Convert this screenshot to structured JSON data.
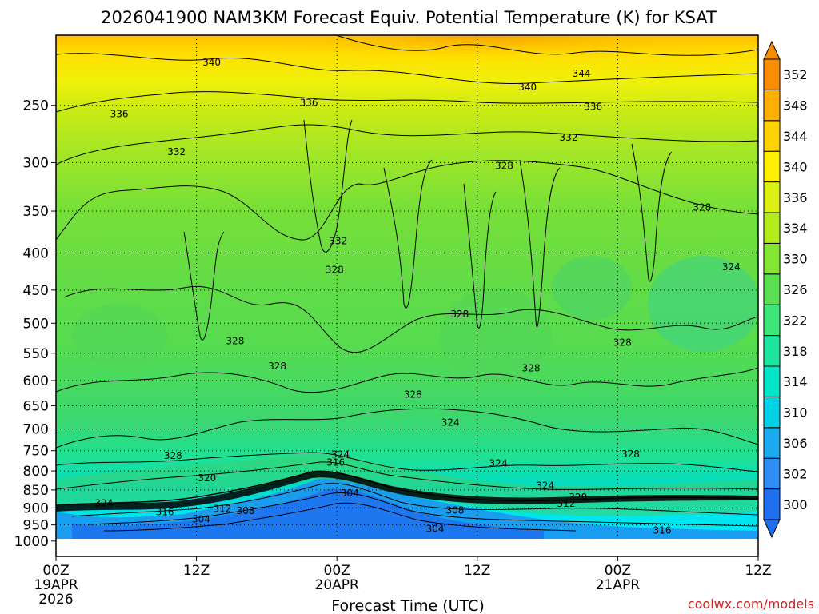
{
  "chart_data": {
    "type": "contour",
    "title": "2026041900 NAM3KM Forecast Equiv. Potential Temperature (K) for KSAT",
    "xlabel": "Forecast Time (UTC)",
    "ylabel": "",
    "y_pressure_levels_hPa": [
      250,
      300,
      350,
      400,
      450,
      500,
      550,
      600,
      650,
      700,
      750,
      800,
      850,
      900,
      950,
      1000
    ],
    "ylim_hPa": [
      1050,
      200
    ],
    "x_hours": [
      0,
      12,
      24,
      36,
      48,
      60
    ],
    "x_tick_labels": [
      {
        "time": "00Z",
        "date": "19APR",
        "year": "2026"
      },
      {
        "time": "12Z",
        "date": "",
        "year": ""
      },
      {
        "time": "00Z",
        "date": "20APR",
        "year": ""
      },
      {
        "time": "12Z",
        "date": "",
        "year": ""
      },
      {
        "time": "00Z",
        "date": "21APR",
        "year": ""
      },
      {
        "time": "12Z",
        "date": "",
        "year": ""
      }
    ],
    "colorbar_levels_K": [
      300,
      302,
      306,
      310,
      314,
      318,
      322,
      326,
      330,
      334,
      336,
      340,
      344,
      348,
      352
    ],
    "colorbar_colors": [
      "#1e6ef0",
      "#2e8cf5",
      "#1aaaf0",
      "#00d2e6",
      "#00e6c8",
      "#1ee6a0",
      "#3ce678",
      "#5ae050",
      "#82e632",
      "#b4eb1e",
      "#dcf014",
      "#fff000",
      "#ffd200",
      "#ffaf00",
      "#fa8c00"
    ],
    "contour_labels": [
      {
        "text": "340",
        "hour": 13.3,
        "p": 218
      },
      {
        "text": "344",
        "hour": 44.9,
        "p": 226
      },
      {
        "text": "340",
        "hour": 40.3,
        "p": 236
      },
      {
        "text": "336",
        "hour": 5.4,
        "p": 257
      },
      {
        "text": "336",
        "hour": 21.6,
        "p": 248
      },
      {
        "text": "336",
        "hour": 45.9,
        "p": 251
      },
      {
        "text": "332",
        "hour": 10.3,
        "p": 290
      },
      {
        "text": "332",
        "hour": 43.8,
        "p": 277
      },
      {
        "text": "328",
        "hour": 38.3,
        "p": 303
      },
      {
        "text": "328",
        "hour": 55.2,
        "p": 346
      },
      {
        "text": "332",
        "hour": 24.1,
        "p": 385
      },
      {
        "text": "328",
        "hour": 23.8,
        "p": 422
      },
      {
        "text": "324",
        "hour": 57.7,
        "p": 418
      },
      {
        "text": "328",
        "hour": 34.5,
        "p": 486
      },
      {
        "text": "328",
        "hour": 15.3,
        "p": 529
      },
      {
        "text": "328",
        "hour": 48.4,
        "p": 532
      },
      {
        "text": "328",
        "hour": 18.9,
        "p": 573
      },
      {
        "text": "328",
        "hour": 40.6,
        "p": 577
      },
      {
        "text": "328",
        "hour": 30.5,
        "p": 627
      },
      {
        "text": "324",
        "hour": 33.7,
        "p": 686
      },
      {
        "text": "324",
        "hour": 24.3,
        "p": 759
      },
      {
        "text": "316",
        "hour": 23.9,
        "p": 779
      },
      {
        "text": "328",
        "hour": 10.0,
        "p": 762
      },
      {
        "text": "328",
        "hour": 49.1,
        "p": 758
      },
      {
        "text": "324",
        "hour": 37.8,
        "p": 781
      },
      {
        "text": "320",
        "hour": 12.9,
        "p": 818
      },
      {
        "text": "324",
        "hour": 41.8,
        "p": 838
      },
      {
        "text": "304",
        "hour": 25.1,
        "p": 859
      },
      {
        "text": "320",
        "hour": 44.6,
        "p": 870
      },
      {
        "text": "324",
        "hour": 4.1,
        "p": 887
      },
      {
        "text": "312",
        "hour": 14.2,
        "p": 902
      },
      {
        "text": "312",
        "hour": 43.6,
        "p": 888
      },
      {
        "text": "308",
        "hour": 16.2,
        "p": 908
      },
      {
        "text": "308",
        "hour": 34.1,
        "p": 907
      },
      {
        "text": "316",
        "hour": 9.3,
        "p": 912
      },
      {
        "text": "304",
        "hour": 12.4,
        "p": 933
      },
      {
        "text": "304",
        "hour": 32.4,
        "p": 962
      },
      {
        "text": "316",
        "hour": 51.8,
        "p": 967
      }
    ],
    "ground_color": "#a0522d"
  },
  "footer": {
    "credit": "coolwx.com/models"
  }
}
